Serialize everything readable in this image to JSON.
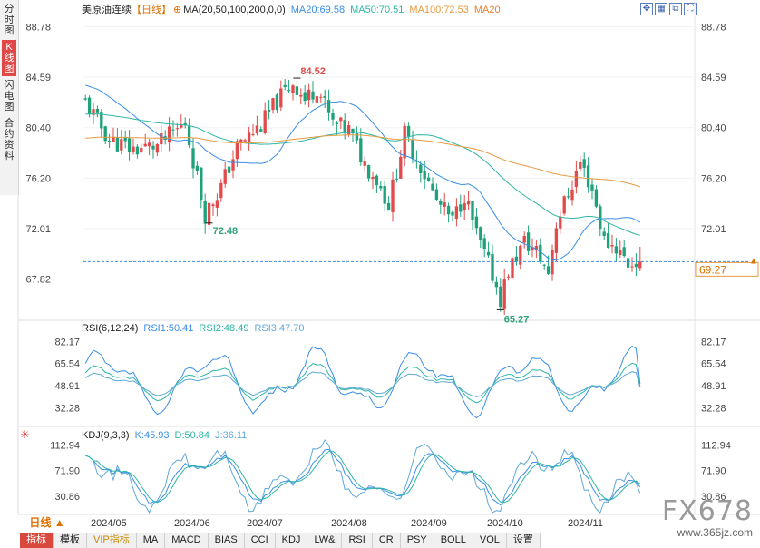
{
  "sidebar": {
    "tabs": [
      {
        "label": "分时图",
        "active": false
      },
      {
        "label": "K线图",
        "active": true
      },
      {
        "label": "闪电图",
        "active": false
      },
      {
        "label": "合约资料",
        "active": false
      }
    ]
  },
  "main": {
    "title": "美原油连续",
    "period": "【日线】",
    "ma_label": "MA(20,50,100,200,0,0)",
    "ma20": "MA20:69.58",
    "ma50": "MA50:70.51",
    "ma100": "MA100:72.53",
    "ma200": "MA20",
    "y_ticks": [
      "88.78",
      "84.59",
      "80.40",
      "76.20",
      "72.01",
      "67.82"
    ],
    "current_price": "69.27",
    "high_label": "84.52",
    "low_label_1": "72.48",
    "low_label_2": "65.27",
    "colors": {
      "up": "#e24b4b",
      "down": "#1fa27a",
      "ma20": "#3a8ee6",
      "ma50": "#2db7a4",
      "ma100": "#e89a40",
      "price_line": "#3a8ee6"
    }
  },
  "rsi": {
    "label": "RSI(6,12,24)",
    "rsi1": "RSI1:50.41",
    "rsi2": "RSI2:48.49",
    "rsi3": "RSI3:47.70",
    "y_ticks": [
      "82.17",
      "65.54",
      "48.91",
      "32.28"
    ]
  },
  "kdj": {
    "label": "KDJ(9,3,3)",
    "k": "K:45.93",
    "d": "D:50.84",
    "j": "J:36.11",
    "y_ticks": [
      "112.94",
      "71.90",
      "30.86"
    ]
  },
  "x_axis": [
    "2024/05",
    "2024/06",
    "2024/07",
    "2024/08",
    "2024/09",
    "2024/10",
    "2024/11"
  ],
  "bottom": {
    "period_button": "日线 ▲",
    "tabs": [
      {
        "label": "指标",
        "style": "active"
      },
      {
        "label": "模板",
        "style": ""
      },
      {
        "label": "VIP指标",
        "style": "vip"
      },
      {
        "label": "MA",
        "style": ""
      },
      {
        "label": "MACD",
        "style": ""
      },
      {
        "label": "BIAS",
        "style": ""
      },
      {
        "label": "CCI",
        "style": ""
      },
      {
        "label": "KDJ",
        "style": ""
      },
      {
        "label": "LW&",
        "style": ""
      },
      {
        "label": "RSI",
        "style": ""
      },
      {
        "label": "CR",
        "style": ""
      },
      {
        "label": "PSY",
        "style": ""
      },
      {
        "label": "BOLL",
        "style": ""
      },
      {
        "label": "VOL",
        "style": ""
      },
      {
        "label": "设置",
        "style": ""
      }
    ]
  },
  "watermark": {
    "logo": "FX678",
    "url": "www.365jz.com"
  }
}
